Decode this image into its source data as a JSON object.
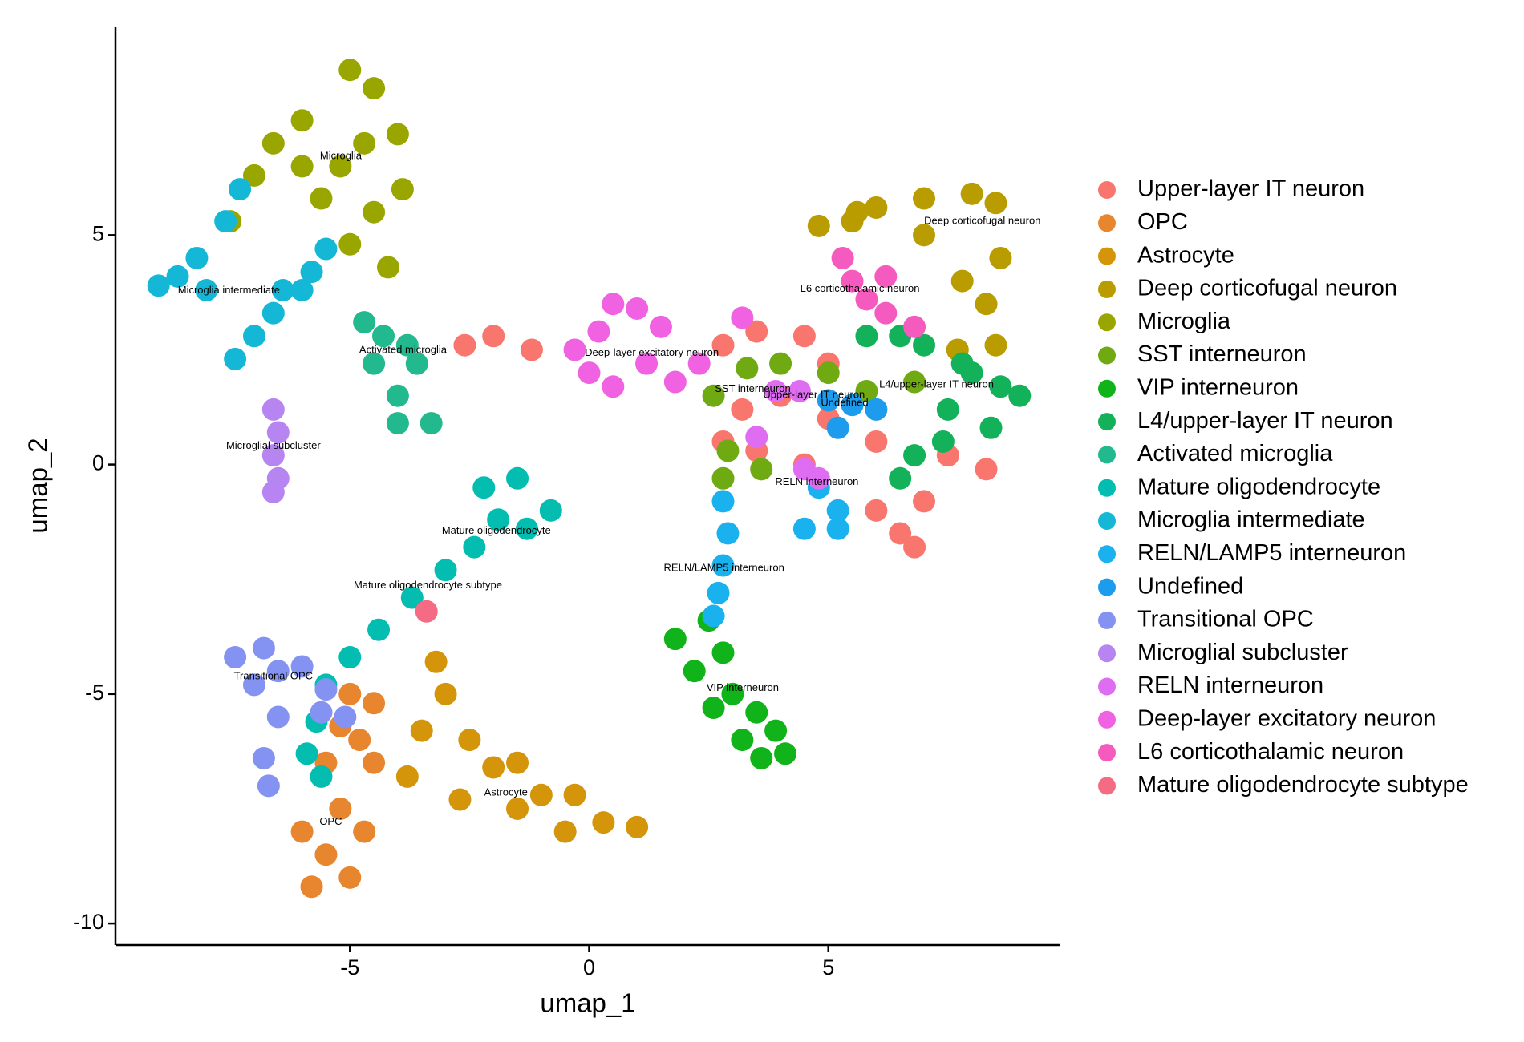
{
  "chart_data": {
    "type": "scatter",
    "x_label": "umap_1",
    "y_label": "umap_2",
    "xlim": [
      -9.9,
      9.85
    ],
    "ylim": [
      -10.47,
      9.53
    ],
    "xticks": [
      -5,
      0,
      5
    ],
    "yticks": [
      -10,
      -5,
      0,
      5
    ],
    "series": [
      {
        "name": "Upper-layer IT neuron",
        "color": "#F8766D",
        "x": [
          -2.6,
          -2,
          -1.2,
          2.8,
          3.5,
          4.5,
          5,
          3.2,
          4,
          5,
          6,
          2.8,
          3.5,
          4.5,
          6,
          6.8,
          7,
          7.5,
          8.3,
          6.5
        ],
        "y": [
          2.6,
          2.8,
          2.5,
          2.6,
          2.9,
          2.8,
          2.2,
          1.2,
          1.5,
          1,
          0.5,
          0.5,
          0.3,
          0,
          -1,
          -1.8,
          -0.8,
          0.2,
          -0.1,
          -1.5
        ]
      },
      {
        "name": "OPC",
        "color": "#E8862F",
        "x": [
          -5,
          -4.8,
          -5.5,
          -5.2,
          -5.5,
          -5.8,
          -5,
          -4.7,
          -6,
          -4.5,
          -5.2,
          -4.5
        ],
        "y": [
          -5,
          -6,
          -6.5,
          -7.5,
          -8.5,
          -9.2,
          -9,
          -8,
          -8,
          -6.5,
          -5.7,
          -5.2
        ]
      },
      {
        "name": "Astrocyte",
        "color": "#D4950A",
        "x": [
          -3.2,
          -3,
          -3.5,
          -3.8,
          -2.5,
          -2,
          -1.5,
          -1,
          -0.5,
          0.3,
          1,
          -2.7,
          -1.5,
          -0.3
        ],
        "y": [
          -4.3,
          -5,
          -5.8,
          -6.8,
          -6,
          -6.6,
          -7.5,
          -7.2,
          -8,
          -7.8,
          -7.9,
          -7.3,
          -6.5,
          -7.2
        ]
      },
      {
        "name": "Deep corticofugal neuron",
        "color": "#B89C00",
        "x": [
          4.8,
          5.5,
          6,
          7,
          8,
          8.5,
          8.6,
          8.3,
          8.5,
          7.7,
          7.8,
          7,
          5.6
        ],
        "y": [
          5.2,
          5.3,
          5.6,
          5.8,
          5.9,
          5.7,
          4.5,
          3.5,
          2.6,
          2.5,
          4,
          5,
          5.5
        ]
      },
      {
        "name": "Microglia",
        "color": "#9AA600",
        "x": [
          -5,
          -4.5,
          -4.7,
          -4,
          -3.9,
          -4.5,
          -5,
          -5.2,
          -6,
          -6.6,
          -7,
          -7.5,
          -5.6,
          -6,
          -4.2
        ],
        "y": [
          8.6,
          8.2,
          7,
          7.2,
          6,
          5.5,
          4.8,
          6.5,
          7.5,
          7,
          6.3,
          5.3,
          5.8,
          6.5,
          4.3
        ]
      },
      {
        "name": "SST interneuron",
        "color": "#6FAA12",
        "x": [
          2.6,
          3.3,
          4,
          5,
          5.8,
          6.8,
          2.9,
          2.8,
          3.6
        ],
        "y": [
          1.5,
          2.1,
          2.2,
          2,
          1.6,
          1.8,
          0.3,
          -0.3,
          -0.1
        ]
      },
      {
        "name": "VIP interneuron",
        "color": "#11B31A",
        "x": [
          1.8,
          2.5,
          2.8,
          2.2,
          3,
          3.5,
          3.9,
          4.1,
          3.2,
          3.6,
          2.6
        ],
        "y": [
          -3.8,
          -3.4,
          -4.1,
          -4.5,
          -5,
          -5.4,
          -5.8,
          -6.3,
          -6,
          -6.4,
          -5.3
        ]
      },
      {
        "name": "L4/upper-layer IT neuron",
        "color": "#13B15A",
        "x": [
          5.8,
          6.5,
          7,
          7.8,
          8.6,
          9,
          8.4,
          7.4,
          6.8,
          7.5,
          6.5,
          8
        ],
        "y": [
          2.8,
          2.8,
          2.6,
          2.2,
          1.7,
          1.5,
          0.8,
          0.5,
          0.2,
          1.2,
          -0.3,
          2
        ]
      },
      {
        "name": "Activated microglia",
        "color": "#21B98D",
        "x": [
          -4.7,
          -4.3,
          -3.8,
          -4.5,
          -3.6,
          -4,
          -4,
          -3.3
        ],
        "y": [
          3.1,
          2.8,
          2.6,
          2.2,
          2.2,
          1.5,
          0.9,
          0.9
        ]
      },
      {
        "name": "Mature oligodendrocyte",
        "color": "#03BDB0",
        "x": [
          -2.2,
          -1.5,
          -0.8,
          -1.3,
          -1.9,
          -2.4,
          -3,
          -3.7,
          -4.4,
          -5,
          -5.5,
          -5.7,
          -5.9,
          -5.6
        ],
        "y": [
          -0.5,
          -0.3,
          -1,
          -1.4,
          -1.2,
          -1.8,
          -2.3,
          -2.9,
          -3.6,
          -4.2,
          -4.8,
          -5.6,
          -6.3,
          -6.8
        ]
      },
      {
        "name": "Microglia intermediate",
        "color": "#14B8D6",
        "x": [
          -9,
          -8.6,
          -8.2,
          -7.6,
          -7.3,
          -6.4,
          -5.8,
          -5.5,
          -7.4,
          -7,
          -6.6,
          -6,
          -8
        ],
        "y": [
          3.9,
          4.1,
          4.5,
          5.3,
          6,
          3.8,
          4.2,
          4.7,
          2.3,
          2.8,
          3.3,
          3.8,
          3.8
        ]
      },
      {
        "name": "RELN/LAMP5 interneuron",
        "color": "#1AB2EE",
        "x": [
          2.8,
          2.9,
          2.8,
          2.7,
          2.6,
          4.5,
          5.2,
          5.2,
          4.8
        ],
        "y": [
          -0.8,
          -1.5,
          -2.2,
          -2.8,
          -3.3,
          -1.4,
          -1.4,
          -1,
          -0.5
        ]
      },
      {
        "name": "Undefined",
        "color": "#1D9BEC",
        "x": [
          5,
          5.5,
          6,
          5.2
        ],
        "y": [
          1.4,
          1.3,
          1.2,
          0.8
        ]
      },
      {
        "name": "Transitional OPC",
        "color": "#8493F2",
        "x": [
          -7.4,
          -6.8,
          -6.5,
          -7,
          -6,
          -5.5,
          -5.1,
          -6.5,
          -6.8,
          -6.7,
          -5.6
        ],
        "y": [
          -4.2,
          -4,
          -4.5,
          -4.8,
          -4.4,
          -4.9,
          -5.5,
          -5.5,
          -6.4,
          -7,
          -5.4
        ]
      },
      {
        "name": "Microglial subcluster",
        "color": "#B785F2",
        "x": [
          -6.6,
          -6.5,
          -6.6,
          -6.5,
          -6.6
        ],
        "y": [
          1.2,
          0.7,
          0.2,
          -0.3,
          -0.6
        ]
      },
      {
        "name": "RELN interneuron",
        "color": "#DF6DF2",
        "x": [
          4.5,
          4.8,
          3.5,
          3.9,
          4.4
        ],
        "y": [
          -0.1,
          -0.3,
          0.6,
          1.6,
          1.6
        ]
      },
      {
        "name": "Deep-layer excitatory neuron",
        "color": "#F062E1",
        "x": [
          0.5,
          1,
          0.2,
          -0.3,
          1.2,
          0.5,
          1.8,
          2.3,
          0,
          1.5,
          3.2
        ],
        "y": [
          3.5,
          3.4,
          2.9,
          2.5,
          2.2,
          1.7,
          1.8,
          2.2,
          2,
          3,
          3.2
        ]
      },
      {
        "name": "L6 corticothalamic neuron",
        "color": "#F55BBE",
        "x": [
          5.3,
          5.5,
          5.8,
          6.2,
          6.8,
          6.2
        ],
        "y": [
          4.5,
          4,
          3.6,
          3.3,
          3,
          4.1
        ]
      },
      {
        "name": "Mature oligodendrocyte subtype",
        "color": "#F56B84",
        "x": [
          -3.4
        ],
        "y": [
          -3.2
        ]
      }
    ],
    "annotations": [
      {
        "text": "Microglia",
        "x": -5.19,
        "y": 6.72
      },
      {
        "text": "Microglia intermediate",
        "x": -7.53,
        "y": 3.79
      },
      {
        "text": "Activated microglia",
        "x": -3.89,
        "y": 2.49
      },
      {
        "text": "Microglial subcluster",
        "x": -6.6,
        "y": 0.4
      },
      {
        "text": "Mature oligodendrocyte",
        "x": -1.94,
        "y": -1.45
      },
      {
        "text": "Mature oligodendrocyte subtype",
        "x": -3.37,
        "y": -2.64
      },
      {
        "text": "Transitional OPC",
        "x": -6.6,
        "y": -4.62
      },
      {
        "text": "OPC",
        "x": -5.4,
        "y": -7.79
      },
      {
        "text": "Astrocyte",
        "x": -1.74,
        "y": -7.15
      },
      {
        "text": "Deep-layer excitatory neuron",
        "x": 1.31,
        "y": 2.43
      },
      {
        "text": "SST interneuron",
        "x": 3.42,
        "y": 1.64
      },
      {
        "text": "Upper-layer IT neuron",
        "x": 4.7,
        "y": 1.51
      },
      {
        "text": "Undefined",
        "x": 5.34,
        "y": 1.34
      },
      {
        "text": "L4/upper-layer IT neuron",
        "x": 7.26,
        "y": 1.74
      },
      {
        "text": "RELN interneuron",
        "x": 4.76,
        "y": -0.38
      },
      {
        "text": "RELN/LAMP5 interneuron",
        "x": 2.82,
        "y": -2.26
      },
      {
        "text": "VIP interneuron",
        "x": 3.21,
        "y": -4.87
      },
      {
        "text": "Deep corticofugal neuron",
        "x": 8.22,
        "y": 5.3
      },
      {
        "text": "L6 corticothalamic neuron",
        "x": 5.66,
        "y": 3.83
      }
    ]
  }
}
